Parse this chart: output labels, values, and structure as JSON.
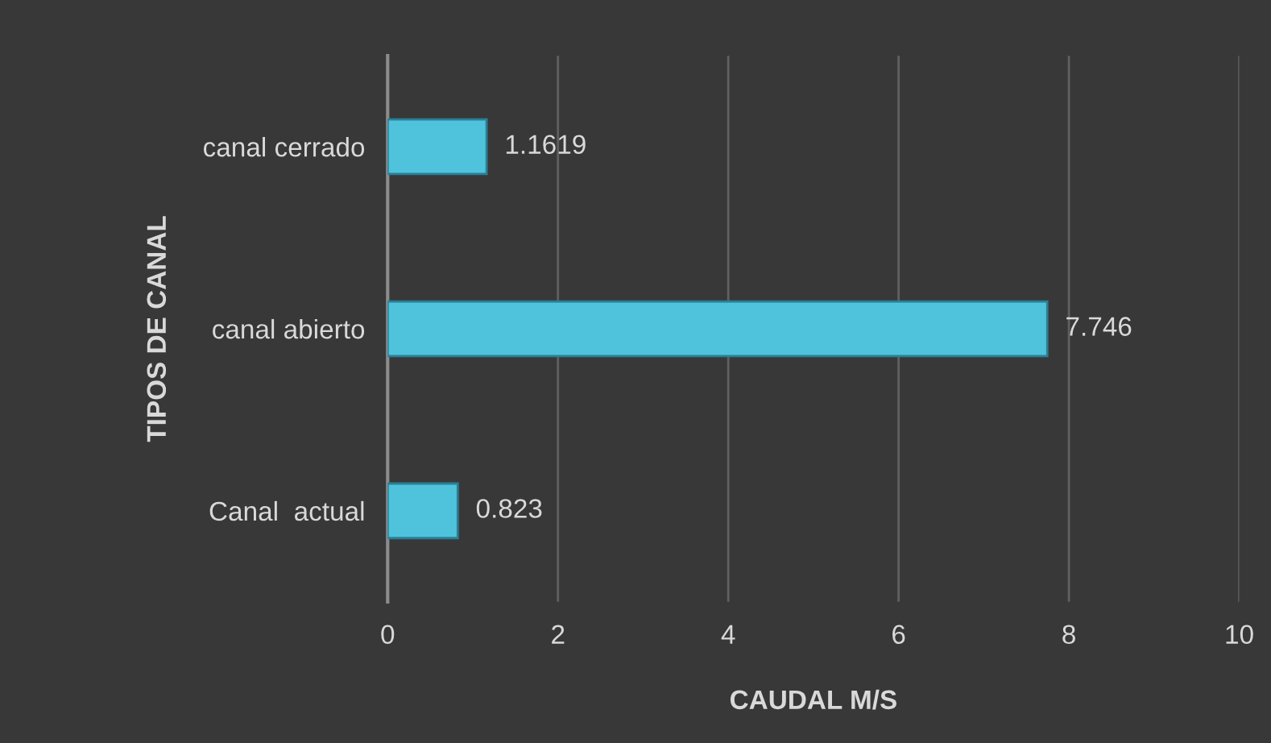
{
  "chart_data": {
    "type": "bar",
    "orientation": "horizontal",
    "categories": [
      "canal cerrado",
      "canal abierto",
      "Canal  actual"
    ],
    "values": [
      1.1619,
      7.746,
      0.823
    ],
    "color": "#4fc3db",
    "xlim": [
      0,
      10
    ],
    "xticks": [
      0,
      2,
      4,
      6,
      8,
      10
    ],
    "xlabel": "CAUDAL M/S",
    "ylabel": "TIPOS DE CANAL",
    "grid": "x",
    "data_labels": true
  }
}
